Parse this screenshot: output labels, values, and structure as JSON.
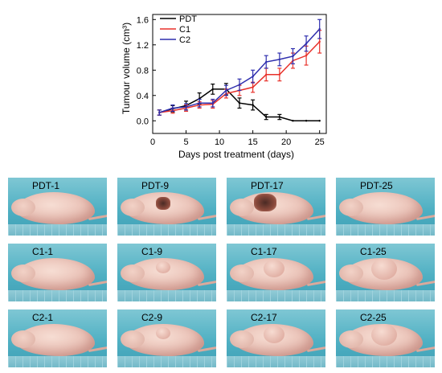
{
  "chart_data": {
    "type": "line",
    "xlabel": "Days post treatment (days)",
    "ylabel": "Tumour volume (cm³)",
    "xlim": [
      0,
      26
    ],
    "ylim": [
      -0.2,
      1.68
    ],
    "xticks": [
      "0",
      "5",
      "10",
      "15",
      "20",
      "25"
    ],
    "yticks": [
      "0.0",
      "0.4",
      "0.8",
      "1.2",
      "1.6"
    ],
    "grid": false,
    "legend_position": "top-left",
    "series": [
      {
        "name": "PDT",
        "color": "#000000",
        "x": [
          1,
          3,
          5,
          7,
          9,
          11,
          13,
          15,
          17,
          19,
          21,
          23,
          25
        ],
        "y": [
          0.13,
          0.19,
          0.24,
          0.35,
          0.5,
          0.5,
          0.28,
          0.25,
          0.06,
          0.06,
          0.0,
          0.0,
          0.0
        ],
        "err": [
          0.04,
          0.05,
          0.07,
          0.09,
          0.08,
          0.09,
          0.08,
          0.08,
          0.04,
          0.04,
          0,
          0,
          0
        ]
      },
      {
        "name": "C1",
        "color": "#e8312a",
        "x": [
          1,
          3,
          5,
          7,
          9,
          11,
          13,
          15,
          17,
          19,
          21,
          23,
          25
        ],
        "y": [
          0.13,
          0.16,
          0.2,
          0.25,
          0.26,
          0.43,
          0.48,
          0.53,
          0.73,
          0.73,
          0.95,
          1.03,
          1.25
        ],
        "err": [
          0.04,
          0.04,
          0.05,
          0.05,
          0.06,
          0.07,
          0.08,
          0.08,
          0.1,
          0.1,
          0.12,
          0.15,
          0.18
        ]
      },
      {
        "name": "C2",
        "color": "#2f2fae",
        "x": [
          1,
          3,
          5,
          7,
          9,
          11,
          13,
          15,
          17,
          19,
          21,
          23,
          25
        ],
        "y": [
          0.13,
          0.2,
          0.22,
          0.28,
          0.28,
          0.48,
          0.57,
          0.7,
          0.93,
          0.97,
          1.02,
          1.22,
          1.45
        ],
        "err": [
          0.04,
          0.05,
          0.05,
          0.06,
          0.06,
          0.08,
          0.09,
          0.1,
          0.1,
          0.1,
          0.12,
          0.12,
          0.15
        ]
      }
    ]
  },
  "photos": [
    {
      "label": "PDT-1"
    },
    {
      "label": "PDT-9"
    },
    {
      "label": "PDT-17"
    },
    {
      "label": "PDT-25"
    },
    {
      "label": "C1-1"
    },
    {
      "label": "C1-9"
    },
    {
      "label": "C1-17"
    },
    {
      "label": "C1-25"
    },
    {
      "label": "C2-1"
    },
    {
      "label": "C2-9"
    },
    {
      "label": "C2-17"
    },
    {
      "label": "C2-25"
    }
  ]
}
